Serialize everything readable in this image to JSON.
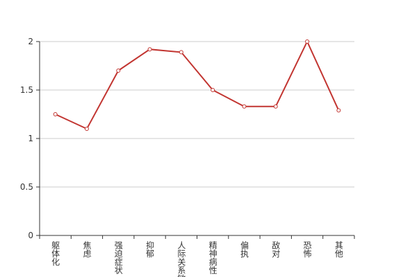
{
  "chart_data": {
    "type": "line",
    "categories": [
      "躯体化",
      "焦虑",
      "强迫症状",
      "抑郁",
      "人际关系敏感",
      "精神病性",
      "偏执",
      "敌对",
      "恐怖",
      "其他"
    ],
    "values": [
      1.25,
      1.1,
      1.7,
      1.92,
      1.89,
      1.5,
      1.33,
      1.33,
      2.0,
      1.29
    ],
    "color": "#c23531",
    "ylim": [
      0,
      2
    ],
    "yticks": [
      0,
      0.5,
      1,
      1.5,
      2
    ],
    "grid": true
  }
}
